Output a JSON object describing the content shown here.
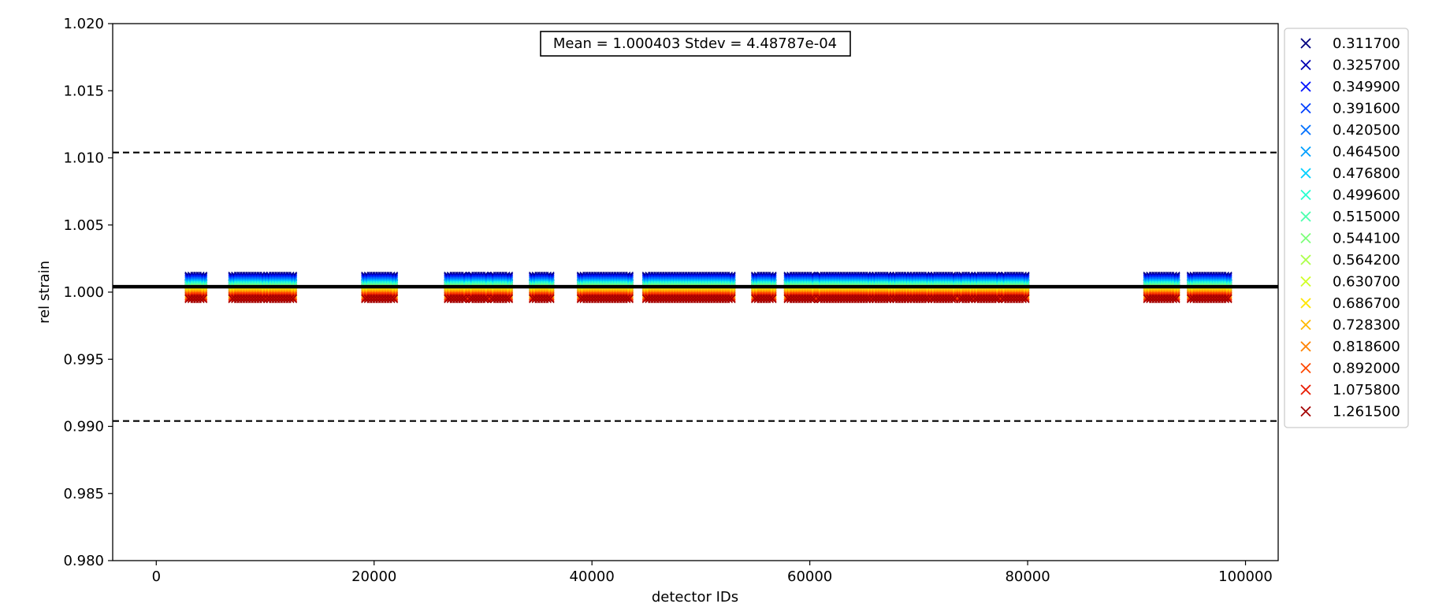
{
  "chart_data": {
    "type": "scatter",
    "title": "",
    "xlabel": "detector IDs",
    "ylabel": "rel strain",
    "xlim": [
      -4000,
      103000
    ],
    "ylim": [
      0.98,
      1.02
    ],
    "xticks": [
      0,
      20000,
      40000,
      60000,
      80000,
      100000
    ],
    "yticks": [
      0.98,
      0.985,
      0.99,
      0.995,
      1.0,
      1.005,
      1.01,
      1.015,
      1.02
    ],
    "grid": false,
    "legend_position": "outside-right",
    "marker": "x",
    "annotation": "Mean = 1.000403 Stdev = 4.48787e-04",
    "reference_lines": [
      {
        "name": "mean",
        "y": 1.000403,
        "style": "solid",
        "color": "#000000"
      },
      {
        "name": "upper-bound",
        "y": 1.0104,
        "style": "dashed",
        "color": "#000000"
      },
      {
        "name": "lower-bound",
        "y": 0.9904,
        "style": "dashed",
        "color": "#000000"
      }
    ],
    "segments": [
      [
        3000,
        4500
      ],
      [
        7000,
        10000
      ],
      [
        10200,
        12700
      ],
      [
        19200,
        22000
      ],
      [
        26800,
        28600
      ],
      [
        28800,
        30600
      ],
      [
        30800,
        32500
      ],
      [
        34600,
        36300
      ],
      [
        39000,
        43500
      ],
      [
        45000,
        52800
      ],
      [
        55000,
        56800
      ],
      [
        58000,
        60500
      ],
      [
        60800,
        65500
      ],
      [
        65800,
        67500
      ],
      [
        67700,
        69000
      ],
      [
        69300,
        71000
      ],
      [
        71200,
        73500
      ],
      [
        73800,
        75000
      ],
      [
        75200,
        77500
      ],
      [
        77700,
        80000
      ],
      [
        91000,
        93800
      ],
      [
        95000,
        98400
      ]
    ],
    "series": [
      {
        "name": "0.311700",
        "color": "#00007f",
        "y": 1.0012
      },
      {
        "name": "0.325700",
        "color": "#0000b2",
        "y": 1.0011
      },
      {
        "name": "0.349900",
        "color": "#0010ff",
        "y": 1.001
      },
      {
        "name": "0.391600",
        "color": "#0040ff",
        "y": 1.0009
      },
      {
        "name": "0.420500",
        "color": "#0070ff",
        "y": 1.0008
      },
      {
        "name": "0.464500",
        "color": "#00a0ff",
        "y": 1.0007
      },
      {
        "name": "0.476800",
        "color": "#00d0ff",
        "y": 1.0006
      },
      {
        "name": "0.499600",
        "color": "#26ffd0",
        "y": 1.0005
      },
      {
        "name": "0.515000",
        "color": "#4affac",
        "y": 1.0004
      },
      {
        "name": "0.544100",
        "color": "#7dff7a",
        "y": 1.0003
      },
      {
        "name": "0.564200",
        "color": "#acff4a",
        "y": 1.0002
      },
      {
        "name": "0.630700",
        "color": "#d0ff26",
        "y": 1.0001
      },
      {
        "name": "0.686700",
        "color": "#ffe600",
        "y": 1.0
      },
      {
        "name": "0.728300",
        "color": "#ffb900",
        "y": 0.9999
      },
      {
        "name": "0.818600",
        "color": "#ff8200",
        "y": 0.9998
      },
      {
        "name": "0.892000",
        "color": "#ff4800",
        "y": 0.9997
      },
      {
        "name": "1.075800",
        "color": "#e81a00",
        "y": 0.9996
      },
      {
        "name": "1.261500",
        "color": "#a40000",
        "y": 0.9995
      }
    ]
  }
}
